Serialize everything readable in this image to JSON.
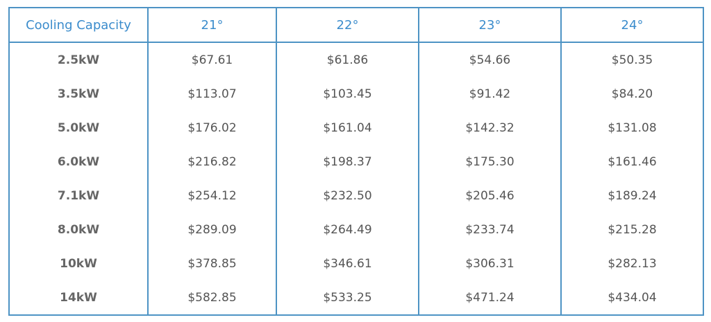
{
  "table": {
    "header": [
      "Cooling Capacity",
      "21°",
      "22°",
      "23°",
      "24°"
    ],
    "rows": [
      [
        "2.5kW",
        "$67.61",
        "$61.86",
        "$54.66",
        "$50.35"
      ],
      [
        "3.5kW",
        "$113.07",
        "$103.45",
        "$91.42",
        "$84.20"
      ],
      [
        "5.0kW",
        "$176.02",
        "$161.04",
        "$142.32",
        "$131.08"
      ],
      [
        "6.0kW",
        "$216.82",
        "$198.37",
        "$175.30",
        "$161.46"
      ],
      [
        "7.1kW",
        "$254.12",
        "$232.50",
        "$205.46",
        "$189.24"
      ],
      [
        "8.0kW",
        "$289.09",
        "$264.49",
        "$233.74",
        "$215.28"
      ],
      [
        "10kW",
        "$378.85",
        "$346.61",
        "$306.31",
        "$282.13"
      ],
      [
        "14kW",
        "$582.85",
        "$533.25",
        "$471.24",
        "$434.04"
      ]
    ]
  }
}
